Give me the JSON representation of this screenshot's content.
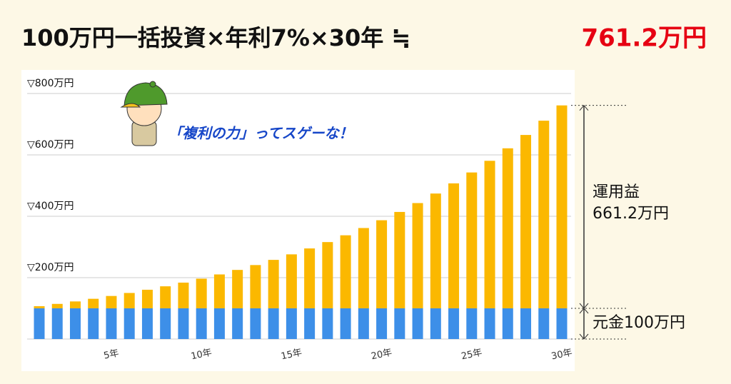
{
  "chart_data": {
    "type": "stacked_bar",
    "title": "100万円一括投資×年利7%×30年 ≒",
    "title_result": "761.2万円",
    "bubble": "「複利の力」ってスゲーな！",
    "annotations": {
      "gain_label": "運用益",
      "gain_value": "661.2万円",
      "principal": "元金100万円"
    },
    "categories": [
      null,
      null,
      null,
      null,
      "5年",
      null,
      null,
      null,
      null,
      "10年",
      null,
      null,
      null,
      null,
      "15年",
      null,
      null,
      null,
      null,
      "20年",
      null,
      null,
      null,
      null,
      "25年",
      null,
      null,
      null,
      null,
      "30年"
    ],
    "series": [
      {
        "color": "#3d8fe8",
        "values": [
          100,
          100,
          100,
          100,
          100,
          100,
          100,
          100,
          100,
          100,
          100,
          100,
          100,
          100,
          100,
          100,
          100,
          100,
          100,
          100,
          100,
          100,
          100,
          100,
          100,
          100,
          100,
          100,
          100,
          100
        ]
      },
      {
        "color": "#fbb800",
        "values": [
          7.0,
          14.5,
          22.5,
          31.1,
          40.3,
          50.1,
          60.6,
          71.8,
          83.8,
          96.7,
          110.5,
          125.2,
          141.0,
          157.9,
          175.9,
          195.2,
          215.9,
          238.0,
          261.7,
          287.0,
          314.1,
          343.0,
          374.1,
          407.2,
          442.7,
          480.7,
          521.4,
          564.9,
          611.4,
          661.2
        ]
      }
    ],
    "ylim": [
      0,
      800
    ],
    "yticks": [
      {
        "value": 200,
        "label": "▽200万円"
      },
      {
        "value": 400,
        "label": "▽400万円"
      },
      {
        "value": 600,
        "label": "▽600万円"
      },
      {
        "value": 800,
        "label": "▽800万円"
      }
    ],
    "grid": true
  }
}
